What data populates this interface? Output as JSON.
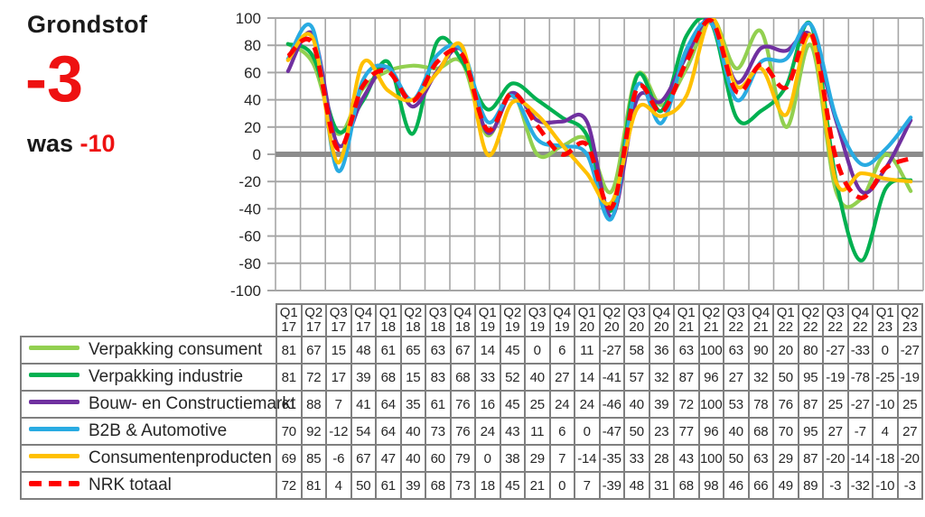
{
  "header": {
    "title": "Grondstof",
    "current_value": "-3",
    "was_label": "was ",
    "previous_value": "-10",
    "accent_color": "#ee1111"
  },
  "chart_data": {
    "type": "line",
    "smoothed": true,
    "title": "",
    "xlabel": "",
    "ylabel": "",
    "ylim": [
      -100,
      100
    ],
    "yticks": [
      100,
      80,
      60,
      40,
      20,
      0,
      -20,
      -40,
      -60,
      -80,
      -100
    ],
    "grid": true,
    "grid_color": "#a6a6a6",
    "zero_line_color": "#8c8c8c",
    "legend_position": "table-left",
    "x_labels": [
      "Q1 17",
      "Q2 17",
      "Q3 17",
      "Q4 17",
      "Q1 18",
      "Q2 18",
      "Q3 18",
      "Q4 18",
      "Q1 19",
      "Q2 19",
      "Q3 19",
      "Q4 19",
      "Q1 20",
      "Q2 20",
      "Q3 20",
      "Q4 20",
      "Q1 21",
      "Q2 21",
      "Q3 22",
      "Q4 21",
      "Q1 22",
      "Q2 22",
      "Q3 22",
      "Q4 22",
      "Q1 23",
      "Q2 23"
    ],
    "series": [
      {
        "name": "Verpakking consument",
        "color": "#92d050",
        "style": "solid",
        "values": [
          81,
          67,
          15,
          48,
          61,
          65,
          63,
          67,
          14,
          45,
          0,
          6,
          11,
          -27,
          58,
          36,
          63,
          100,
          63,
          90,
          20,
          80,
          -27,
          -33,
          0,
          -27
        ]
      },
      {
        "name": "Verpakking industrie",
        "color": "#00b050",
        "style": "solid",
        "values": [
          81,
          72,
          17,
          39,
          68,
          15,
          83,
          68,
          33,
          52,
          40,
          27,
          14,
          -41,
          57,
          32,
          87,
          96,
          27,
          32,
          50,
          95,
          -19,
          -78,
          -25,
          -19
        ]
      },
      {
        "name": "Bouw- en Constructiemarkt",
        "color": "#7030a0",
        "style": "solid",
        "values": [
          61,
          88,
          7,
          41,
          64,
          35,
          61,
          76,
          16,
          45,
          25,
          24,
          24,
          -46,
          40,
          39,
          72,
          100,
          53,
          78,
          76,
          87,
          25,
          -27,
          -10,
          25
        ]
      },
      {
        "name": "B2B & Automotive",
        "color": "#29abe2",
        "style": "solid",
        "values": [
          70,
          92,
          -12,
          54,
          64,
          40,
          73,
          76,
          24,
          43,
          11,
          6,
          0,
          -47,
          50,
          23,
          77,
          96,
          40,
          68,
          70,
          95,
          27,
          -7,
          4,
          27
        ]
      },
      {
        "name": "Consumentenproducten",
        "color": "#ffc000",
        "style": "solid",
        "values": [
          69,
          85,
          -6,
          67,
          47,
          40,
          60,
          79,
          0,
          38,
          29,
          7,
          -14,
          -35,
          33,
          28,
          43,
          100,
          50,
          63,
          29,
          87,
          -20,
          -14,
          -18,
          -20
        ]
      },
      {
        "name": "NRK totaal",
        "color": "#ff0000",
        "style": "dashed",
        "values": [
          72,
          81,
          4,
          50,
          61,
          39,
          68,
          73,
          18,
          45,
          21,
          0,
          7,
          -39,
          48,
          31,
          68,
          98,
          46,
          66,
          49,
          89,
          -3,
          -32,
          -10,
          -3
        ]
      }
    ]
  }
}
